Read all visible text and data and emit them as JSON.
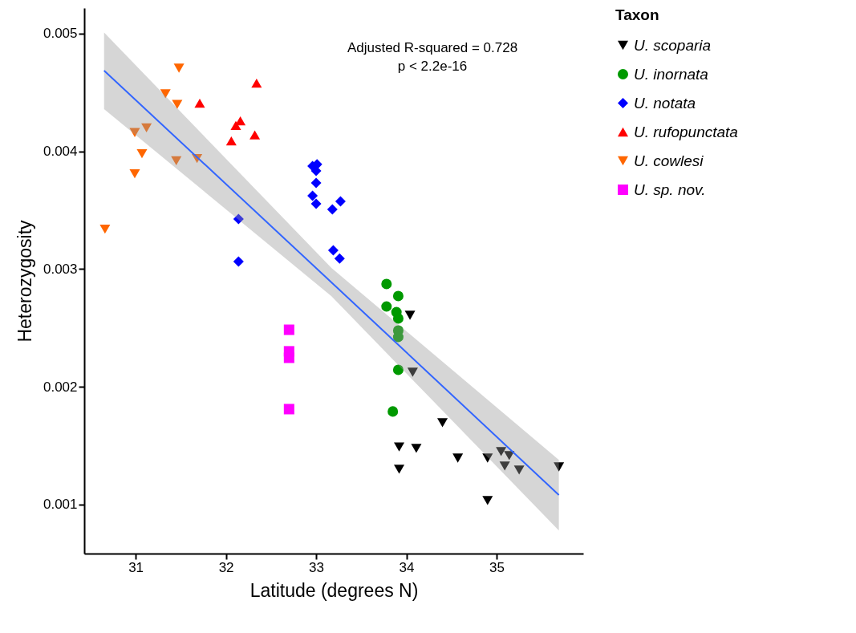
{
  "chart_data": {
    "type": "scatter",
    "xlabel": "Latitude (degrees N)",
    "ylabel": "Heterozygosity",
    "legend_title": "Taxon",
    "legend": "right",
    "grid": false,
    "xlim": [
      30.43,
      35.96
    ],
    "ylim": [
      0.000584,
      0.005218
    ],
    "xticks": [
      31,
      32,
      33,
      34,
      35
    ],
    "yticks": [
      {
        "value": 0.001,
        "label": "0.001"
      },
      {
        "value": 0.002,
        "label": "0.002"
      },
      {
        "value": 0.003,
        "label": "0.003"
      },
      {
        "value": 0.004,
        "label": "0.004"
      },
      {
        "value": 0.005,
        "label": "0.005"
      }
    ],
    "annotations": [
      "Adjusted R-squared = 0.728",
      "p < 2.2e-16"
    ],
    "series": [
      {
        "name": "U. scoparia",
        "color": "#000000",
        "marker": "triangle-down",
        "x": [
          34.04,
          34.07,
          34.4,
          33.92,
          34.11,
          33.92,
          34.57,
          34.9,
          35.05,
          35.14,
          35.09,
          35.25,
          35.69,
          34.9
        ],
        "values": [
          0.002608,
          0.002124,
          0.001695,
          0.00149,
          0.001477,
          0.0013,
          0.001395,
          0.001395,
          0.00145,
          0.001416,
          0.001328,
          0.001293,
          0.00132,
          0.001034
        ]
      },
      {
        "name": "U. inornata",
        "color": "#009900",
        "marker": "circle",
        "x": [
          33.78,
          33.91,
          33.78,
          33.89,
          33.91,
          33.91,
          33.91,
          33.91,
          33.85
        ],
        "values": [
          0.002874,
          0.002772,
          0.002683,
          0.002635,
          0.002581,
          0.002479,
          0.002424,
          0.002145,
          0.001791
        ]
      },
      {
        "name": "U. notata",
        "color": "#0000ff",
        "marker": "diamond",
        "x": [
          32.96,
          33.01,
          33.0,
          33.0,
          32.96,
          33.0,
          33.27,
          33.18,
          33.19,
          33.26,
          32.14,
          32.14
        ],
        "values": [
          0.003876,
          0.00389,
          0.003835,
          0.003733,
          0.003624,
          0.003555,
          0.003576,
          0.003508,
          0.00316,
          0.00309,
          0.003426,
          0.003065
        ]
      },
      {
        "name": "U. rufopunctata",
        "color": "#ff0000",
        "marker": "triangle-up",
        "x": [
          32.34,
          31.71,
          32.16,
          32.11,
          32.32,
          32.06
        ],
        "values": [
          0.00458,
          0.00441,
          0.00426,
          0.00422,
          0.00414,
          0.00409
        ]
      },
      {
        "name": "U. cowlesi",
        "color": "#ff6600",
        "marker": "triangle-down",
        "x": [
          31.48,
          31.33,
          31.46,
          31.12,
          30.99,
          31.07,
          31.45,
          31.68,
          30.99,
          30.66
        ],
        "values": [
          0.004707,
          0.00449,
          0.0044,
          0.0042,
          0.00416,
          0.00398,
          0.00392,
          0.00394,
          0.00381,
          0.00334
        ]
      },
      {
        "name": "U. sp. nov.",
        "color": "#ff00ff",
        "marker": "square",
        "x": [
          32.7,
          32.7,
          32.7,
          32.7
        ],
        "values": [
          0.002485,
          0.002302,
          0.002247,
          0.001811
        ]
      },
      {
        "type": "line",
        "color": "#3366ff",
        "marker": "none",
        "x": [
          30.65,
          33.17,
          35.69
        ],
        "values": [
          0.004687,
          0.002888,
          0.001082
        ],
        "lower": [
          0.00436,
          0.00277,
          0.00078
        ],
        "upper": [
          0.00501,
          0.00301,
          0.00138
        ]
      }
    ]
  }
}
